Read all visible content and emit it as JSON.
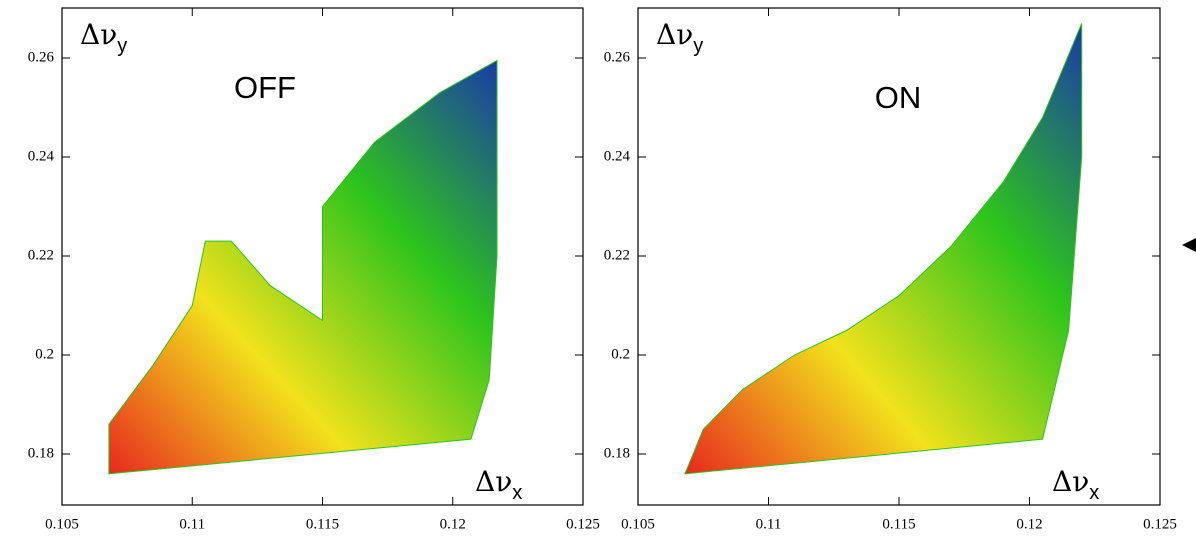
{
  "chart_data": [
    {
      "type": "footprint",
      "annotation": "OFF",
      "xlabel": "Δν",
      "xlabel_subscript": "x",
      "ylabel": "Δν",
      "ylabel_subscript": "y",
      "xlim": [
        0.105,
        0.125
      ],
      "ylim": [
        0.1697,
        0.2701
      ],
      "xticks": [
        0.105,
        0.11,
        0.115,
        0.12,
        0.125
      ],
      "yticks": [
        0.18,
        0.2,
        0.22,
        0.24,
        0.26
      ],
      "colors": [
        "#e8281e",
        "#f2e21c",
        "#2ec41c",
        "#1a3aa8"
      ],
      "series": [
        {
          "x": [
            0.1068,
            0.1068,
            0.1085,
            0.11,
            0.1105,
            0.1115,
            0.113,
            0.115,
            0.115,
            0.117,
            0.1195,
            0.1217,
            0.1217,
            0.1214,
            0.1207
          ],
          "y": [
            0.176,
            0.186,
            0.198,
            0.21,
            0.223,
            0.223,
            0.214,
            0.207,
            0.23,
            0.243,
            0.253,
            0.2595,
            0.22,
            0.195,
            0.183
          ]
        }
      ]
    },
    {
      "type": "footprint",
      "annotation": "ON",
      "xlabel": "Δν",
      "xlabel_subscript": "x",
      "ylabel": "Δν",
      "ylabel_subscript": "y",
      "xlim": [
        0.105,
        0.125
      ],
      "ylim": [
        0.1697,
        0.2701
      ],
      "xticks": [
        0.105,
        0.11,
        0.115,
        0.12,
        0.125
      ],
      "yticks": [
        0.18,
        0.2,
        0.22,
        0.24,
        0.26
      ],
      "colors": [
        "#e8281e",
        "#f2e21c",
        "#2ec41c",
        "#1a3aa8"
      ],
      "series": [
        {
          "x": [
            0.1068,
            0.1075,
            0.109,
            0.111,
            0.113,
            0.115,
            0.117,
            0.119,
            0.1205,
            0.122,
            0.122,
            0.1215,
            0.1205
          ],
          "y": [
            0.176,
            0.185,
            0.193,
            0.2,
            0.205,
            0.212,
            0.222,
            0.235,
            0.248,
            0.267,
            0.24,
            0.205,
            0.183
          ]
        }
      ]
    }
  ]
}
